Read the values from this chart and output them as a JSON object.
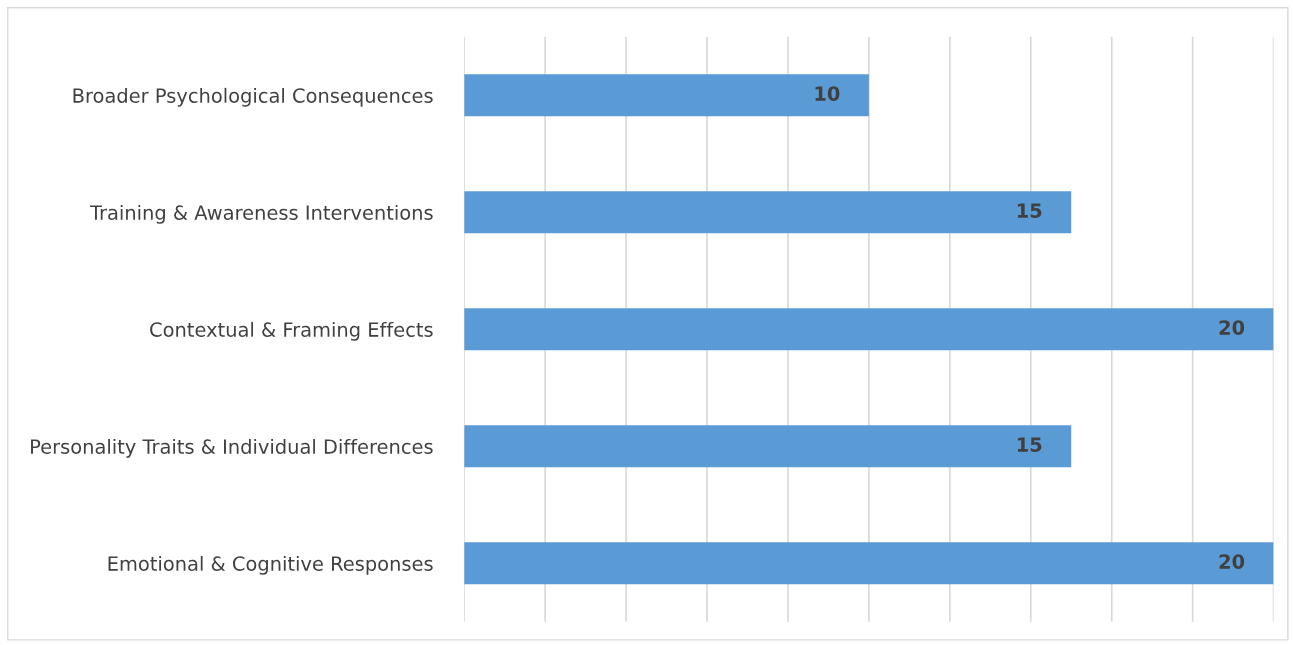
{
  "chart_data": {
    "type": "bar",
    "orientation": "horizontal",
    "categories": [
      "Broader Psychological Consequences",
      "Training & Awareness Interventions",
      "Contextual & Framing Effects",
      "Personality Traits & Individual Differences",
      "Emotional & Cognitive Responses"
    ],
    "values": [
      10,
      15,
      20,
      15,
      20
    ],
    "color": "#5b9bd5",
    "xlim": [
      0,
      20
    ],
    "xticks": [
      {
        "value": 0,
        "label": null
      },
      {
        "value": 2,
        "label": null
      },
      {
        "value": 4,
        "label": null
      },
      {
        "value": 6,
        "label": null
      },
      {
        "value": 8,
        "label": null
      },
      {
        "value": 10,
        "label": null
      },
      {
        "value": 12,
        "label": null
      },
      {
        "value": 14,
        "label": null
      },
      {
        "value": 16,
        "label": null
      },
      {
        "value": 18,
        "label": null
      },
      {
        "value": 20,
        "label": null
      }
    ],
    "grid": "x",
    "tick_labels": "y",
    "data_labels": true,
    "legend": false
  }
}
